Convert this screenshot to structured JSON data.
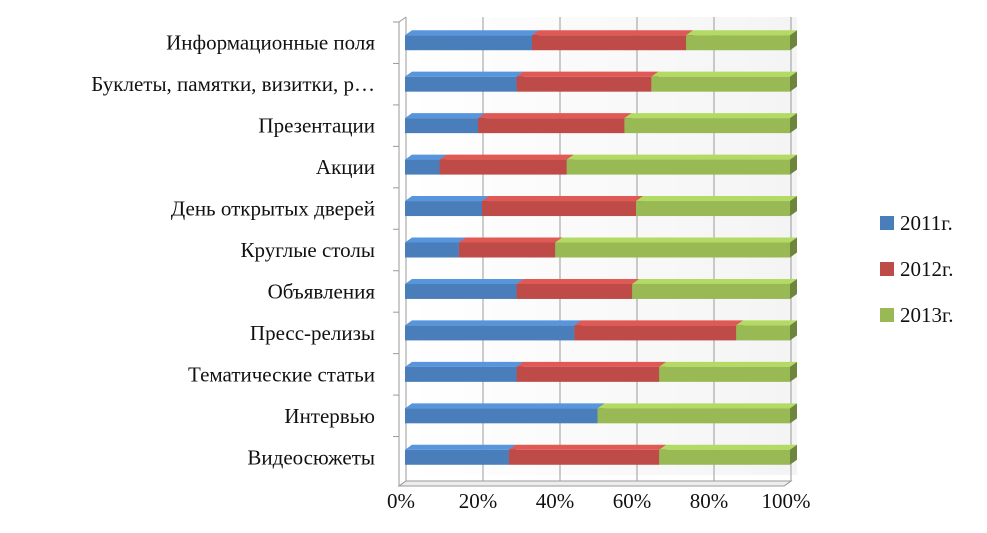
{
  "chart_data": {
    "type": "bar",
    "orientation": "horizontal",
    "stacking": "percent",
    "categories": [
      "Информационные поля",
      "Буклеты, памятки, визитки, р…",
      "Презентации",
      "Акции",
      "День открытых дверей",
      "Круглые столы",
      "Объявления",
      "Пресс-релизы",
      "Тематические статьи",
      "Интервью",
      "Видеосюжеты"
    ],
    "series": [
      {
        "name": "2011г.",
        "color": "#4a7ebb",
        "values": [
          33,
          29,
          19,
          9,
          20,
          14,
          29,
          44,
          29,
          50,
          27
        ]
      },
      {
        "name": "2012г.",
        "color": "#be4b48",
        "values": [
          40,
          35,
          38,
          33,
          40,
          25,
          30,
          42,
          37,
          0,
          39
        ]
      },
      {
        "name": "2013г.",
        "color": "#98b954",
        "values": [
          27,
          36,
          43,
          58,
          40,
          61,
          41,
          14,
          34,
          50,
          34
        ]
      }
    ],
    "x_ticks": [
      "0%",
      "20%",
      "40%",
      "60%",
      "80%",
      "100%"
    ],
    "xlim": [
      0,
      100
    ],
    "grid": true,
    "legend_position": "right",
    "title": "",
    "xlabel": "",
    "ylabel": ""
  }
}
